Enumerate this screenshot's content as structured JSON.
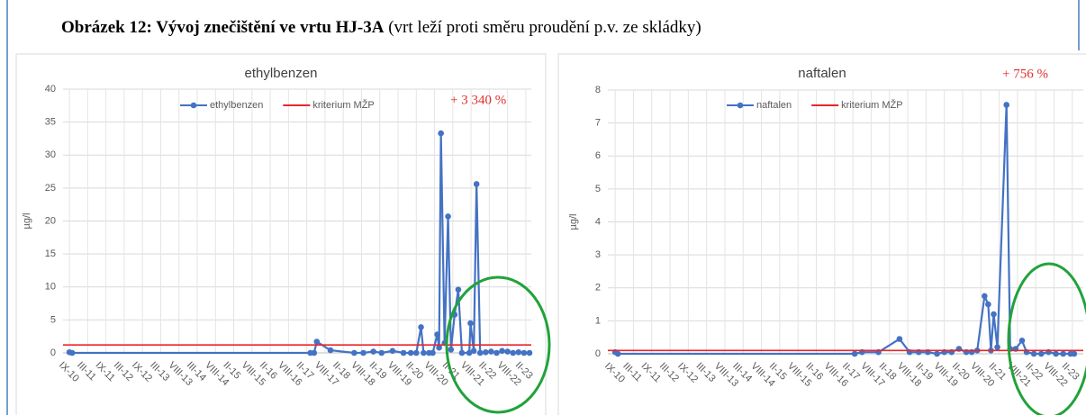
{
  "figure_title": {
    "bold": "Obrázek 12: Vývoj znečištění ve vrtu HJ-3A",
    "rest": "(vrt leží proti směru proudění p.v. ze skládky)"
  },
  "chart_data": [
    {
      "type": "line",
      "title": "ethylbenzen",
      "y_label": "µg/l",
      "annotation": "+ 3 340 %",
      "legend": "top",
      "grid": true,
      "xlim": [
        -0.35,
        25.3
      ],
      "ylim": [
        0,
        40
      ],
      "yticks": [
        0,
        5,
        10,
        15,
        20,
        25,
        30,
        35,
        40
      ],
      "xticks": [
        {
          "value": 0,
          "label": "IX-10"
        },
        {
          "value": 1,
          "label": "III-11"
        },
        {
          "value": 2,
          "label": "IX-11"
        },
        {
          "value": 3,
          "label": "III-12"
        },
        {
          "value": 4,
          "label": "IX-12"
        },
        {
          "value": 5,
          "label": "III-13"
        },
        {
          "value": 6,
          "label": "VIII-13"
        },
        {
          "value": 7,
          "label": "III-14"
        },
        {
          "value": 8,
          "label": "VIII-14"
        },
        {
          "value": 9,
          "label": "II-15"
        },
        {
          "value": 10,
          "label": "VIII-15"
        },
        {
          "value": 11,
          "label": "II-16"
        },
        {
          "value": 12,
          "label": "VIII-16"
        },
        {
          "value": 13,
          "label": "II-17"
        },
        {
          "value": 14,
          "label": "VIII-17"
        },
        {
          "value": 15,
          "label": "II-18"
        },
        {
          "value": 16,
          "label": "VIII-18"
        },
        {
          "value": 17,
          "label": "II-19"
        },
        {
          "value": 18,
          "label": "VIII-19"
        },
        {
          "value": 19,
          "label": "II-20"
        },
        {
          "value": 20,
          "label": "VIII-20"
        },
        {
          "value": 21,
          "label": "II-21"
        },
        {
          "value": 22,
          "label": "VIII-21"
        },
        {
          "value": 23,
          "label": "II-22"
        },
        {
          "value": 24,
          "label": "VIII-22"
        },
        {
          "value": 25,
          "label": "II-23"
        }
      ],
      "series": [
        {
          "name": "ethylbenzen",
          "color": "#4472c4",
          "markers": true,
          "x": [
            0,
            0.15,
            13.2,
            13.4,
            13.55,
            14.3,
            15.6,
            16.1,
            16.65,
            17.1,
            17.7,
            18.3,
            18.7,
            19.0,
            19.26,
            19.4,
            19.7,
            19.9,
            20.15,
            20.25,
            20.35,
            20.55,
            20.74,
            20.9,
            21.1,
            21.3,
            21.5,
            21.9,
            21.97,
            22.15,
            22.3,
            22.5,
            22.8,
            23.1,
            23.4,
            23.7,
            24.0,
            24.3,
            24.6,
            24.9,
            25.2
          ],
          "values": [
            0.1,
            0,
            0,
            0,
            1.7,
            0.4,
            0,
            0,
            0.2,
            0,
            0.3,
            0,
            0,
            0,
            3.9,
            0,
            0,
            0,
            2.8,
            0.8,
            33.3,
            1.5,
            20.7,
            0.5,
            5.8,
            9.6,
            0,
            0,
            4.5,
            0.3,
            25.6,
            0,
            0.1,
            0.2,
            0,
            0.3,
            0.2,
            0,
            0.1,
            0,
            0
          ]
        },
        {
          "name": "kriterium MŽP",
          "color": "#e8262a",
          "markers": false,
          "x": [
            -0.35,
            25.3
          ],
          "values": [
            1.2,
            1.2
          ]
        }
      ]
    },
    {
      "type": "line",
      "title": "naftalen",
      "y_label": "µg/l",
      "annotation": "+ 756 %",
      "legend": "top",
      "grid": true,
      "xlim": [
        -0.4,
        25.6
      ],
      "ylim": [
        0,
        8
      ],
      "yticks": [
        0,
        1,
        2,
        3,
        4,
        5,
        6,
        7,
        8
      ],
      "xticks": [
        {
          "value": 0,
          "label": "IX-10"
        },
        {
          "value": 1,
          "label": "III-11"
        },
        {
          "value": 2,
          "label": "IX-11"
        },
        {
          "value": 3,
          "label": "III-12"
        },
        {
          "value": 4,
          "label": "IX-12"
        },
        {
          "value": 5,
          "label": "III-13"
        },
        {
          "value": 6,
          "label": "VIII-13"
        },
        {
          "value": 7,
          "label": "III-14"
        },
        {
          "value": 8,
          "label": "VIII-14"
        },
        {
          "value": 9,
          "label": "II-15"
        },
        {
          "value": 10,
          "label": "VIII-15"
        },
        {
          "value": 11,
          "label": "II-16"
        },
        {
          "value": 12,
          "label": "VIII-16"
        },
        {
          "value": 13,
          "label": "II-17"
        },
        {
          "value": 14,
          "label": "VIII-17"
        },
        {
          "value": 15,
          "label": "II-18"
        },
        {
          "value": 16,
          "label": "VIII-18"
        },
        {
          "value": 17,
          "label": "II-19"
        },
        {
          "value": 18,
          "label": "VIII-19"
        },
        {
          "value": 19,
          "label": "II-20"
        },
        {
          "value": 20,
          "label": "VIII-20"
        },
        {
          "value": 21,
          "label": "II-21"
        },
        {
          "value": 22,
          "label": "VIII-21"
        },
        {
          "value": 23,
          "label": "II-22"
        },
        {
          "value": 24,
          "label": "VIII-22"
        },
        {
          "value": 25,
          "label": "II-23"
        }
      ],
      "series": [
        {
          "name": "naftalen",
          "color": "#4472c4",
          "markers": true,
          "x": [
            0,
            0.15,
            13.1,
            13.5,
            14.4,
            15.55,
            16.1,
            16.6,
            17.1,
            17.6,
            18.0,
            18.4,
            18.8,
            19.2,
            19.5,
            19.8,
            20.2,
            20.4,
            20.55,
            20.7,
            20.9,
            21.4,
            21.6,
            21.9,
            22.25,
            22.5,
            22.9,
            23.3,
            23.7,
            24.1,
            24.5,
            24.9,
            25.1
          ],
          "values": [
            0.05,
            0,
            0,
            0.05,
            0.05,
            0.45,
            0.05,
            0.05,
            0.05,
            0,
            0.05,
            0.05,
            0.15,
            0.05,
            0.05,
            0.1,
            1.75,
            1.5,
            0.1,
            1.2,
            0.2,
            7.55,
            0.15,
            0.15,
            0.4,
            0.05,
            0,
            0,
            0.05,
            0,
            0,
            0,
            0
          ]
        },
        {
          "name": "kriterium MŽP",
          "color": "#e8262a",
          "markers": false,
          "x": [
            -0.4,
            25.6
          ],
          "values": [
            0.1,
            0.1
          ]
        }
      ]
    }
  ]
}
